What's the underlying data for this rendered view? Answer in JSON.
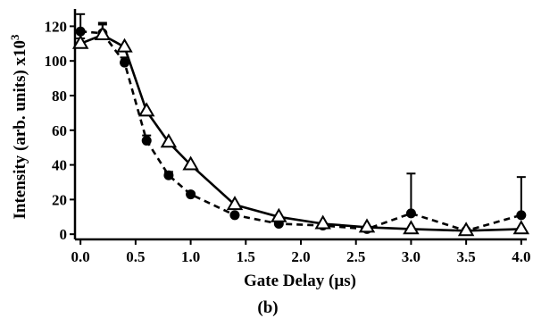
{
  "chart_data": {
    "type": "scatter",
    "title": "",
    "xlabel": "Gate Delay (µs)",
    "ylabel": "Intensity (arb. units) x10",
    "ylabel_superscript": "3",
    "panel_label": "(b)",
    "xlim": [
      -0.05,
      4.05
    ],
    "ylim": [
      -3,
      130
    ],
    "xticks": [
      0.0,
      0.5,
      1.0,
      1.5,
      2.0,
      2.5,
      3.0,
      3.5,
      4.0
    ],
    "xtick_labels": [
      "0.0",
      "0.5",
      "1.0",
      "1.5",
      "2.0",
      "2.5",
      "3.0",
      "3.5",
      "4.0"
    ],
    "yticks": [
      0,
      20,
      40,
      60,
      80,
      100,
      120
    ],
    "ytick_labels": [
      "0",
      "20",
      "40",
      "60",
      "80",
      "100",
      "120"
    ],
    "grid": false,
    "legend": "none",
    "series": [
      {
        "marker": "filled-circle",
        "line": "dashed",
        "color": "#000000",
        "x": [
          0.0,
          0.2,
          0.4,
          0.6,
          0.8,
          1.0,
          1.4,
          1.8,
          2.2,
          2.6,
          3.0,
          3.5,
          4.0
        ],
        "y": [
          117,
          116,
          99,
          54,
          34,
          23,
          11,
          6,
          5,
          3,
          12,
          2,
          11
        ],
        "err": [
          10,
          6,
          3,
          3,
          2,
          1,
          1,
          0,
          0,
          0,
          23,
          0,
          22
        ]
      },
      {
        "marker": "open-triangle",
        "line": "solid",
        "color": "#000000",
        "x": [
          0.0,
          0.2,
          0.4,
          0.6,
          0.8,
          1.0,
          1.4,
          1.8,
          2.2,
          2.6,
          3.0,
          3.5,
          4.0
        ],
        "y": [
          110,
          115,
          108,
          71,
          53,
          40,
          17,
          10,
          6,
          4,
          3,
          2,
          3
        ],
        "err": [
          3,
          6,
          0,
          0,
          0,
          0,
          0,
          0,
          0,
          0,
          0,
          0,
          0
        ]
      }
    ]
  }
}
